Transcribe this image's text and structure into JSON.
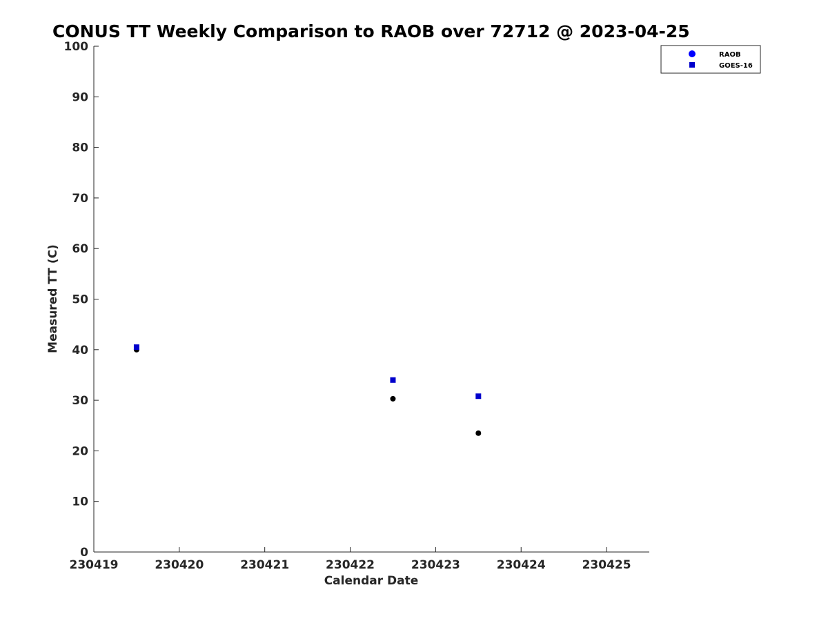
{
  "chart_data": {
    "type": "scatter",
    "title": "CONUS TT Weekly Comparison to RAOB over 72712 @ 2023-04-25",
    "xlabel": "Calendar Date",
    "ylabel": "Measured TT (C)",
    "xlim": [
      230419,
      230425.5
    ],
    "ylim": [
      0,
      100
    ],
    "xticks": [
      "230419",
      "230420",
      "230421",
      "230422",
      "230423",
      "230424",
      "230425"
    ],
    "yticks": [
      "0",
      "10",
      "20",
      "30",
      "40",
      "50",
      "60",
      "70",
      "80",
      "90",
      "100"
    ],
    "grid": false,
    "legend_position": "top-right",
    "series": [
      {
        "name": "RAOB",
        "marker": "circle",
        "legend_color": "#0000ff",
        "point_color": "#000000",
        "x": [
          230419.5,
          230422.5,
          230423.5
        ],
        "y": [
          40.0,
          30.3,
          23.5
        ]
      },
      {
        "name": "GOES-16",
        "marker": "square",
        "legend_color": "#0000cc",
        "point_color": "#0000cc",
        "x": [
          230419.5,
          230422.5,
          230423.5
        ],
        "y": [
          40.5,
          34.0,
          30.8
        ]
      }
    ]
  }
}
